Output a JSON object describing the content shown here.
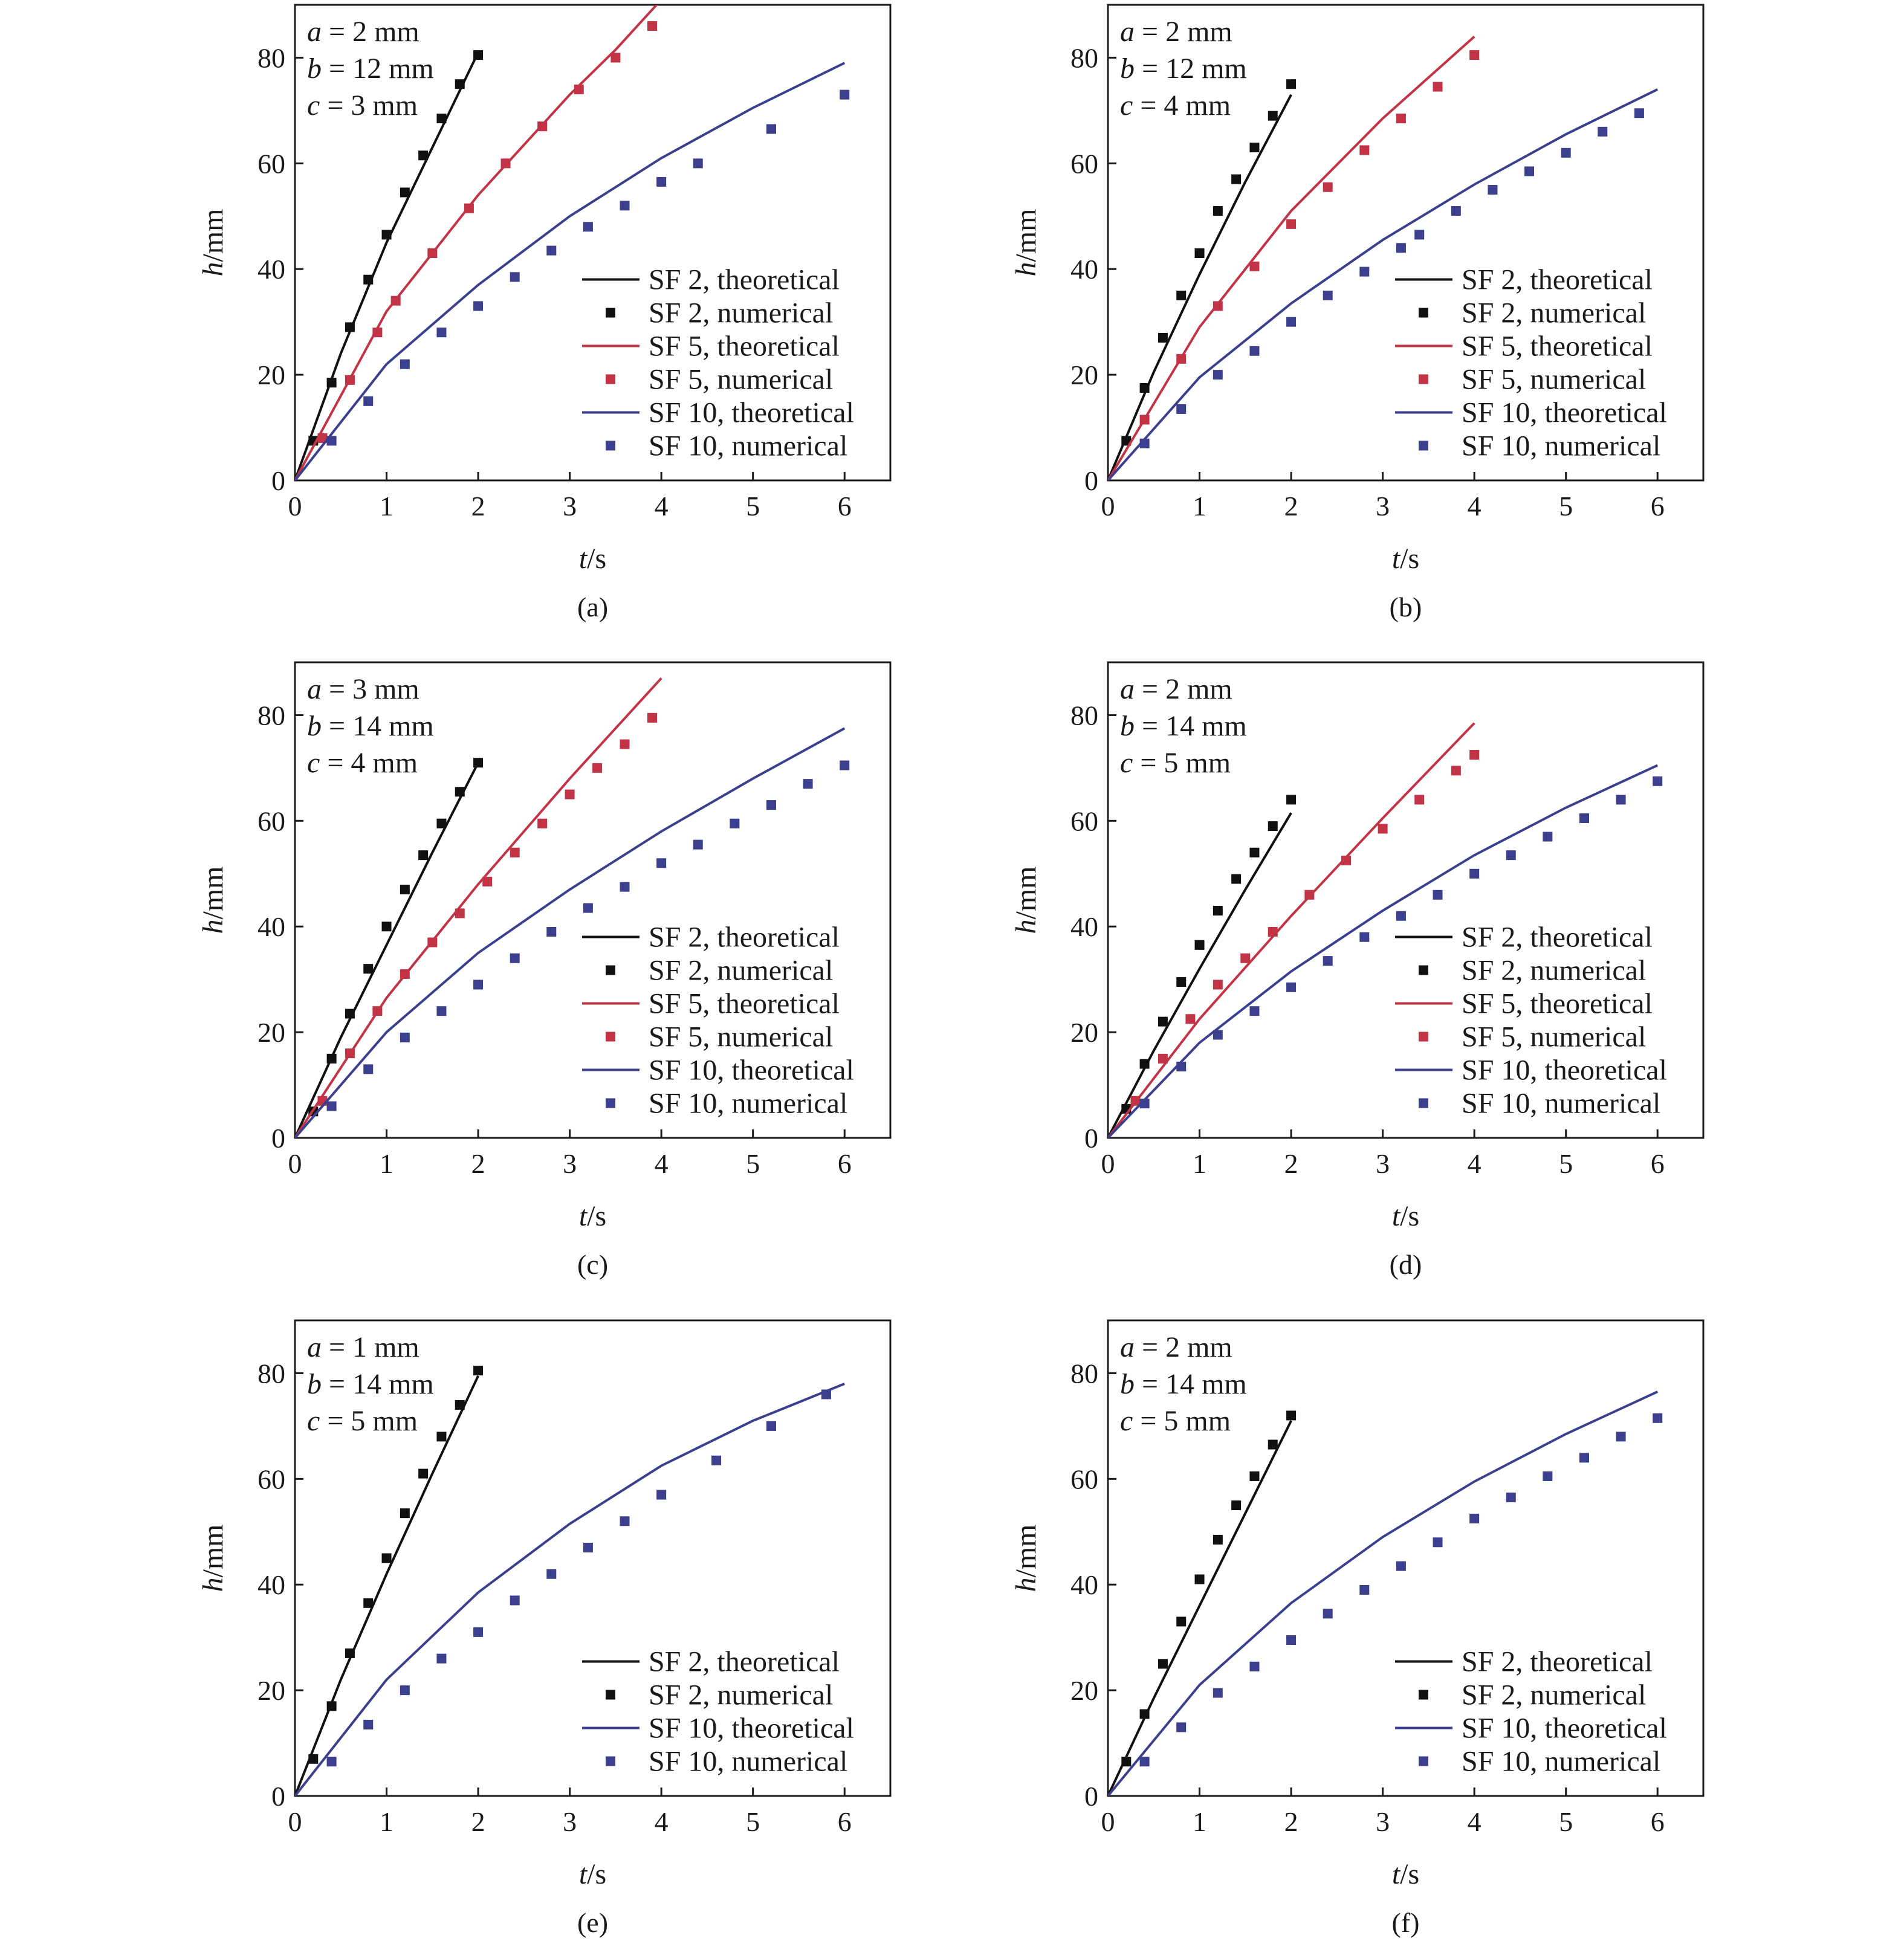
{
  "colors": {
    "SF 2": "#111111",
    "SF 5": "#c23445",
    "SF 10": "#3b3f8e",
    "axis": "#1a1a1a"
  },
  "legend_templates": {
    "theoretical": "theoretical",
    "numerical": "numerical"
  },
  "chart_data": [
    {
      "type": "line+scatter",
      "caption": "(a)",
      "xlabel": {
        "var": "t",
        "unit": "/s"
      },
      "ylabel": {
        "var": "h",
        "unit": "/mm"
      },
      "xlim": [
        0,
        6.5
      ],
      "ylim": [
        0,
        90
      ],
      "xticks": [
        0,
        1,
        2,
        3,
        4,
        5,
        6
      ],
      "yticks": [
        0,
        20,
        40,
        60,
        80
      ],
      "legend_position": "lower-right",
      "params": [
        {
          "var": "a",
          "text": " = 2 mm"
        },
        {
          "var": "b",
          "text": " = 12 mm"
        },
        {
          "var": "c",
          "text": " = 3 mm"
        }
      ],
      "series": [
        {
          "name": "SF 2",
          "theoretical": {
            "x": [
              0,
              0.5,
              1,
              1.5,
              2
            ],
            "y": [
              0,
              24,
              45,
              63,
              81
            ]
          },
          "numerical": {
            "x": [
              0.2,
              0.4,
              0.6,
              0.8,
              1.0,
              1.2,
              1.4,
              1.6,
              1.8,
              2.0
            ],
            "y": [
              7.5,
              18.5,
              29,
              38,
              46.5,
              54.5,
              61.5,
              68.5,
              75,
              80.5
            ]
          }
        },
        {
          "name": "SF 5",
          "theoretical": {
            "x": [
              0,
              1,
              2,
              3,
              3.5,
              4
            ],
            "y": [
              0,
              32,
              54,
              73,
              81.5,
              91
            ]
          },
          "numerical": {
            "x": [
              0.3,
              0.6,
              0.9,
              1.1,
              1.5,
              1.9,
              2.3,
              2.7,
              3.1,
              3.5,
              3.9
            ],
            "y": [
              8,
              19,
              28,
              34,
              43,
              51.5,
              60,
              67,
              74,
              80,
              86
            ]
          }
        },
        {
          "name": "SF 10",
          "theoretical": {
            "x": [
              0,
              1,
              2,
              3,
              4,
              5,
              6
            ],
            "y": [
              0,
              22,
              37,
              50,
              61,
              70.5,
              79
            ]
          },
          "numerical": {
            "x": [
              0.4,
              0.8,
              1.2,
              1.6,
              2.0,
              2.4,
              2.8,
              3.2,
              3.6,
              4.0,
              4.4,
              5.2,
              6.0
            ],
            "y": [
              7.5,
              15,
              22,
              28,
              33,
              38.5,
              43.5,
              48,
              52,
              56.5,
              60,
              66.5,
              73
            ]
          }
        }
      ]
    },
    {
      "type": "line+scatter",
      "caption": "(b)",
      "xlabel": {
        "var": "t",
        "unit": "/s"
      },
      "ylabel": {
        "var": "h",
        "unit": "/mm"
      },
      "xlim": [
        0,
        6.5
      ],
      "ylim": [
        0,
        90
      ],
      "xticks": [
        0,
        1,
        2,
        3,
        4,
        5,
        6
      ],
      "yticks": [
        0,
        20,
        40,
        60,
        80
      ],
      "legend_position": "lower-right",
      "params": [
        {
          "var": "a",
          "text": " = 2 mm"
        },
        {
          "var": "b",
          "text": " = 12 mm"
        },
        {
          "var": "c",
          "text": " = 4 mm"
        }
      ],
      "series": [
        {
          "name": "SF 2",
          "theoretical": {
            "x": [
              0,
              0.5,
              1,
              1.5,
              2
            ],
            "y": [
              0,
              20.5,
              39,
              56.5,
              73
            ]
          },
          "numerical": {
            "x": [
              0.2,
              0.4,
              0.6,
              0.8,
              1.0,
              1.2,
              1.4,
              1.6,
              1.8,
              2.0
            ],
            "y": [
              7.5,
              17.5,
              27,
              35,
              43,
              51,
              57,
              63,
              69,
              75
            ]
          }
        },
        {
          "name": "SF 5",
          "theoretical": {
            "x": [
              0,
              1,
              2,
              3,
              4
            ],
            "y": [
              0,
              29,
              51,
              68.5,
              84
            ]
          },
          "numerical": {
            "x": [
              0.4,
              0.8,
              1.2,
              1.6,
              2.0,
              2.4,
              2.8,
              3.2,
              3.6,
              4.0
            ],
            "y": [
              11.5,
              23,
              33,
              40.5,
              48.5,
              55.5,
              62.5,
              68.5,
              74.5,
              80.5
            ]
          }
        },
        {
          "name": "SF 10",
          "theoretical": {
            "x": [
              0,
              1,
              2,
              3,
              4,
              5,
              6
            ],
            "y": [
              0,
              19.5,
              33.5,
              45.5,
              56,
              65.5,
              74
            ]
          },
          "numerical": {
            "x": [
              0.4,
              0.8,
              1.2,
              1.6,
              2.0,
              2.4,
              2.8,
              3.2,
              3.4,
              3.8,
              4.2,
              4.6,
              5.0,
              5.4,
              5.8
            ],
            "y": [
              7,
              13.5,
              20,
              24.5,
              30,
              35,
              39.5,
              44,
              46.5,
              51,
              55,
              58.5,
              62,
              66,
              69.5
            ]
          }
        }
      ]
    },
    {
      "type": "line+scatter",
      "caption": "(c)",
      "xlabel": {
        "var": "t",
        "unit": "/s"
      },
      "ylabel": {
        "var": "h",
        "unit": "/mm"
      },
      "xlim": [
        0,
        6.5
      ],
      "ylim": [
        0,
        90
      ],
      "xticks": [
        0,
        1,
        2,
        3,
        4,
        5,
        6
      ],
      "yticks": [
        0,
        20,
        40,
        60,
        80
      ],
      "legend_position": "lower-right",
      "params": [
        {
          "var": "a",
          "text": " = 3 mm"
        },
        {
          "var": "b",
          "text": " = 14 mm"
        },
        {
          "var": "c",
          "text": " = 4 mm"
        }
      ],
      "series": [
        {
          "name": "SF 2",
          "theoretical": {
            "x": [
              0,
              0.5,
              1,
              1.5,
              2
            ],
            "y": [
              0,
              19,
              36.5,
              54,
              71
            ]
          },
          "numerical": {
            "x": [
              0.2,
              0.4,
              0.6,
              0.8,
              1.0,
              1.2,
              1.4,
              1.6,
              1.8,
              2.0
            ],
            "y": [
              5,
              15,
              23.5,
              32,
              40,
              47,
              53.5,
              59.5,
              65.5,
              71
            ]
          }
        },
        {
          "name": "SF 5",
          "theoretical": {
            "x": [
              0,
              1,
              2,
              3,
              4
            ],
            "y": [
              0,
              26.5,
              48,
              68,
              87
            ]
          },
          "numerical": {
            "x": [
              0.3,
              0.6,
              0.9,
              1.2,
              1.5,
              1.8,
              2.1,
              2.4,
              2.7,
              3.0,
              3.3,
              3.6,
              3.9
            ],
            "y": [
              7,
              16,
              24,
              31,
              37,
              42.5,
              48.5,
              54,
              59.5,
              65,
              70,
              74.5,
              79.5
            ]
          }
        },
        {
          "name": "SF 10",
          "theoretical": {
            "x": [
              0,
              1,
              2,
              3,
              4,
              5,
              6
            ],
            "y": [
              0,
              20,
              35,
              47,
              58,
              68,
              77.5
            ]
          },
          "numerical": {
            "x": [
              0.4,
              0.8,
              1.2,
              1.6,
              2.0,
              2.4,
              2.8,
              3.2,
              3.6,
              4.0,
              4.4,
              4.8,
              5.2,
              5.6,
              6.0
            ],
            "y": [
              6,
              13,
              19,
              24,
              29,
              34,
              39,
              43.5,
              47.5,
              52,
              55.5,
              59.5,
              63,
              67,
              70.5
            ]
          }
        }
      ]
    },
    {
      "type": "line+scatter",
      "caption": "(d)",
      "xlabel": {
        "var": "t",
        "unit": "/s"
      },
      "ylabel": {
        "var": "h",
        "unit": "/mm"
      },
      "xlim": [
        0,
        6.5
      ],
      "ylim": [
        0,
        90
      ],
      "xticks": [
        0,
        1,
        2,
        3,
        4,
        5,
        6
      ],
      "yticks": [
        0,
        20,
        40,
        60,
        80
      ],
      "legend_position": "lower-right",
      "params": [
        {
          "var": "a",
          "text": " = 2 mm"
        },
        {
          "var": "b",
          "text": " = 14 mm"
        },
        {
          "var": "c",
          "text": " = 5 mm"
        }
      ],
      "series": [
        {
          "name": "SF 2",
          "theoretical": {
            "x": [
              0,
              0.5,
              1,
              1.5,
              2
            ],
            "y": [
              0,
              16.5,
              32,
              47,
              61.5
            ]
          },
          "numerical": {
            "x": [
              0.2,
              0.4,
              0.6,
              0.8,
              1.0,
              1.2,
              1.4,
              1.6,
              1.8,
              2.0
            ],
            "y": [
              5.5,
              14,
              22,
              29.5,
              36.5,
              43,
              49,
              54,
              59,
              64
            ]
          }
        },
        {
          "name": "SF 5",
          "theoretical": {
            "x": [
              0,
              1,
              2,
              3,
              4
            ],
            "y": [
              0,
              22.5,
              42,
              60.5,
              78.5
            ]
          },
          "numerical": {
            "x": [
              0.3,
              0.6,
              0.9,
              1.2,
              1.5,
              1.8,
              2.2,
              2.6,
              3.0,
              3.4,
              3.8,
              4.0
            ],
            "y": [
              7,
              15,
              22.5,
              29,
              34,
              39,
              46,
              52.5,
              58.5,
              64,
              69.5,
              72.5
            ]
          }
        },
        {
          "name": "SF 10",
          "theoretical": {
            "x": [
              0,
              1,
              2,
              3,
              4,
              5,
              6
            ],
            "y": [
              0,
              18,
              31.5,
              43,
              53.5,
              62.5,
              70.5
            ]
          },
          "numerical": {
            "x": [
              0.4,
              0.8,
              1.2,
              1.6,
              2.0,
              2.4,
              2.8,
              3.2,
              3.6,
              4.0,
              4.4,
              4.8,
              5.2,
              5.6,
              6.0
            ],
            "y": [
              6.5,
              13.5,
              19.5,
              24,
              28.5,
              33.5,
              38,
              42,
              46,
              50,
              53.5,
              57,
              60.5,
              64,
              67.5
            ]
          }
        }
      ]
    },
    {
      "type": "line+scatter",
      "caption": "(e)",
      "xlabel": {
        "var": "t",
        "unit": "/s"
      },
      "ylabel": {
        "var": "h",
        "unit": "/mm"
      },
      "xlim": [
        0,
        6.5
      ],
      "ylim": [
        0,
        90
      ],
      "xticks": [
        0,
        1,
        2,
        3,
        4,
        5,
        6
      ],
      "yticks": [
        0,
        20,
        40,
        60,
        80
      ],
      "legend_position": "lower-right",
      "params": [
        {
          "var": "a",
          "text": " = 1 mm"
        },
        {
          "var": "b",
          "text": " = 14 mm"
        },
        {
          "var": "c",
          "text": " = 5 mm"
        }
      ],
      "series": [
        {
          "name": "SF 2",
          "theoretical": {
            "x": [
              0,
              0.5,
              1,
              1.5,
              2
            ],
            "y": [
              0,
              22,
              42,
              61,
              79.5
            ]
          },
          "numerical": {
            "x": [
              0.2,
              0.4,
              0.6,
              0.8,
              1.0,
              1.2,
              1.4,
              1.6,
              1.8,
              2.0
            ],
            "y": [
              7,
              17,
              27,
              36.5,
              45,
              53.5,
              61,
              68,
              74,
              80.5
            ]
          }
        },
        {
          "name": "SF 10",
          "theoretical": {
            "x": [
              0,
              1,
              2,
              3,
              4,
              5,
              6
            ],
            "y": [
              0,
              22,
              38.5,
              51.5,
              62.5,
              71,
              78
            ]
          },
          "numerical": {
            "x": [
              0.4,
              0.8,
              1.2,
              1.6,
              2.0,
              2.4,
              2.8,
              3.2,
              3.6,
              4.0,
              4.6,
              5.2,
              5.8
            ],
            "y": [
              6.5,
              13.5,
              20,
              26,
              31,
              37,
              42,
              47,
              52,
              57,
              63.5,
              70,
              76
            ]
          }
        }
      ]
    },
    {
      "type": "line+scatter",
      "caption": "(f)",
      "xlabel": {
        "var": "t",
        "unit": "/s"
      },
      "ylabel": {
        "var": "h",
        "unit": "/mm"
      },
      "xlim": [
        0,
        6.5
      ],
      "ylim": [
        0,
        90
      ],
      "xticks": [
        0,
        1,
        2,
        3,
        4,
        5,
        6
      ],
      "yticks": [
        0,
        20,
        40,
        60,
        80
      ],
      "legend_position": "lower-right",
      "params": [
        {
          "var": "a",
          "text": " = 2 mm"
        },
        {
          "var": "b",
          "text": " = 14 mm"
        },
        {
          "var": "c",
          "text": " = 5 mm"
        }
      ],
      "series": [
        {
          "name": "SF 2",
          "theoretical": {
            "x": [
              0,
              0.5,
              1,
              1.5,
              2
            ],
            "y": [
              0,
              18.5,
              36,
              53.5,
              71
            ]
          },
          "numerical": {
            "x": [
              0.2,
              0.4,
              0.6,
              0.8,
              1.0,
              1.2,
              1.4,
              1.6,
              1.8,
              2.0
            ],
            "y": [
              6.5,
              15.5,
              25,
              33,
              41,
              48.5,
              55,
              60.5,
              66.5,
              72
            ]
          }
        },
        {
          "name": "SF 10",
          "theoretical": {
            "x": [
              0,
              1,
              2,
              3,
              4,
              5,
              6
            ],
            "y": [
              0,
              21,
              36.5,
              49,
              59.5,
              68.5,
              76.5
            ]
          },
          "numerical": {
            "x": [
              0.4,
              0.8,
              1.2,
              1.6,
              2.0,
              2.4,
              2.8,
              3.2,
              3.6,
              4.0,
              4.4,
              4.8,
              5.2,
              5.6,
              6.0
            ],
            "y": [
              6.5,
              13,
              19.5,
              24.5,
              29.5,
              34.5,
              39,
              43.5,
              48,
              52.5,
              56.5,
              60.5,
              64,
              68,
              71.5
            ]
          }
        }
      ]
    }
  ]
}
